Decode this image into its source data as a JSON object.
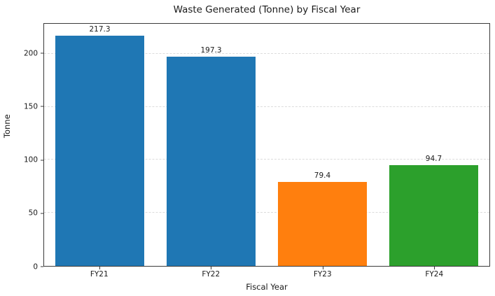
{
  "chart_data": {
    "type": "bar",
    "title": "Waste Generated (Tonne) by Fiscal Year",
    "xlabel": "Fiscal Year",
    "ylabel": "Tonne",
    "categories": [
      "FY21",
      "FY22",
      "FY23",
      "FY24"
    ],
    "values": [
      217.3,
      197.3,
      79.4,
      94.7
    ],
    "value_labels": [
      "217.3",
      "197.3",
      "79.4",
      "94.7"
    ],
    "bar_colors": [
      "#1f77b4",
      "#1f77b4",
      "#ff7f0e",
      "#2ca02c"
    ],
    "yticks": [
      0,
      50,
      100,
      150,
      200
    ],
    "ylim": [
      0,
      228.2
    ],
    "bar_width_fraction": 0.8,
    "grid": "horizontal-dashed",
    "grid_color": "#dcdcdc",
    "legend": "none",
    "background_color": "#ffffff",
    "spine_color": "#3a3a3a",
    "text_color": "#1a1a1a"
  }
}
